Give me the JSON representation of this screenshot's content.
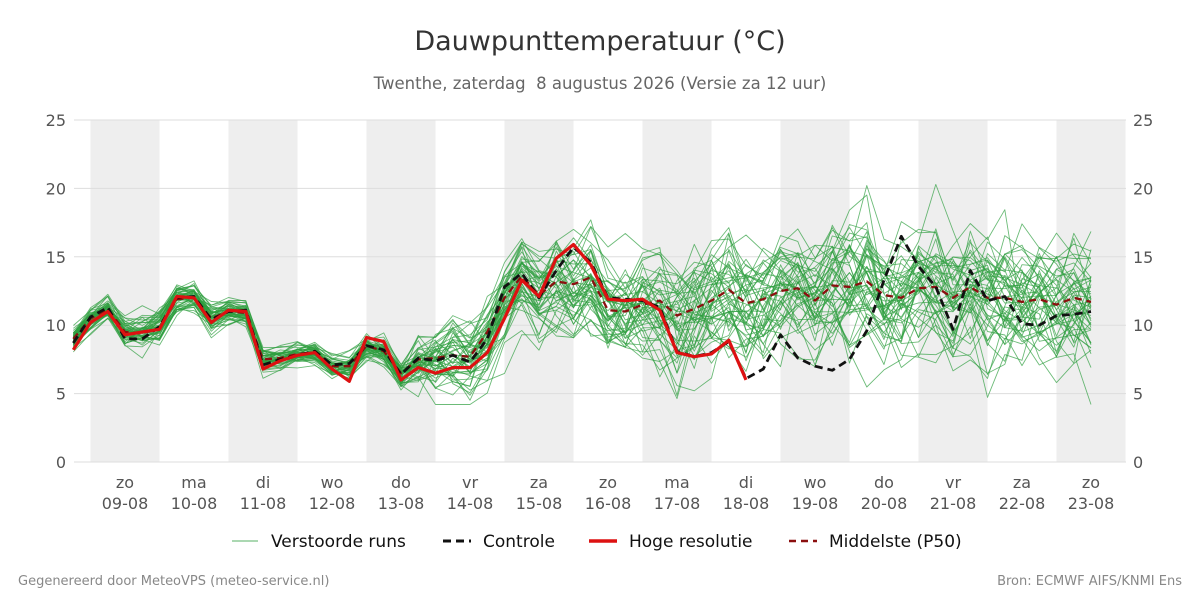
{
  "chart_data": {
    "type": "line",
    "title": "Dauwpunttemperatuur (°C)",
    "subtitle": "Twenthe, zaterdag  8 augustus 2026 (Versie za 12 uur)",
    "ylim": [
      0,
      25
    ],
    "yticks": [
      0,
      5,
      10,
      15,
      20,
      25
    ],
    "grid": true,
    "legend_position": "bottom",
    "day_labels": [
      {
        "day": "zo",
        "date": "09-08"
      },
      {
        "day": "ma",
        "date": "10-08"
      },
      {
        "day": "di",
        "date": "11-08"
      },
      {
        "day": "wo",
        "date": "12-08"
      },
      {
        "day": "do",
        "date": "13-08"
      },
      {
        "day": "vr",
        "date": "14-08"
      },
      {
        "day": "za",
        "date": "15-08"
      },
      {
        "day": "zo",
        "date": "16-08"
      },
      {
        "day": "ma",
        "date": "17-08"
      },
      {
        "day": "di",
        "date": "18-08"
      },
      {
        "day": "wo",
        "date": "19-08"
      },
      {
        "day": "do",
        "date": "20-08"
      },
      {
        "day": "vr",
        "date": "21-08"
      },
      {
        "day": "za",
        "date": "22-08"
      },
      {
        "day": "zo",
        "date": "23-08"
      }
    ],
    "x_start": "08-08 18:00",
    "x_step_hours": 6,
    "series": [
      {
        "name": "Hoge resolutie",
        "color": "#dd1111",
        "values": [
          8.2,
          10.2,
          11.0,
          9.3,
          9.5,
          9.7,
          12.1,
          12.0,
          10.2,
          11.1,
          11.0,
          6.8,
          7.4,
          7.8,
          8.0,
          6.8,
          5.9,
          9.1,
          8.8,
          6.0,
          6.9,
          6.5,
          6.9,
          6.9,
          8.0,
          10.5,
          13.3,
          12.1,
          14.9,
          15.9,
          14.4,
          11.9,
          11.8,
          11.9,
          11.1,
          8.0,
          7.7,
          7.9,
          8.9,
          6.0
        ]
      },
      {
        "name": "Controle",
        "color": "#111111",
        "values": [
          8.7,
          10.6,
          11.3,
          9.0,
          9.0,
          9.9,
          12.0,
          12.1,
          10.4,
          11.0,
          11.1,
          7.1,
          7.5,
          7.8,
          8.1,
          7.1,
          7.2,
          8.5,
          8.2,
          6.4,
          7.6,
          7.4,
          7.8,
          7.3,
          9.0,
          12.8,
          13.8,
          12.0,
          14.0,
          15.7,
          14.6,
          12.0,
          11.9,
          11.8,
          11.3,
          8.1,
          7.7,
          8.0,
          8.8,
          6.1,
          6.8,
          9.3,
          7.6,
          7.0,
          6.7,
          7.5,
          9.6,
          13.3,
          16.5,
          14.3,
          12.8,
          9.7,
          14.0,
          11.8,
          12.1,
          10.1,
          10.0,
          10.7,
          10.8,
          11.0
        ]
      },
      {
        "name": "Middelste (P50)",
        "color": "#8b0f0f",
        "values": [
          9.0,
          10.5,
          11.2,
          9.5,
          9.4,
          9.8,
          11.9,
          12.0,
          10.5,
          11.0,
          10.9,
          7.5,
          7.6,
          7.9,
          8.0,
          7.0,
          7.0,
          8.5,
          8.1,
          6.5,
          7.5,
          7.6,
          7.8,
          7.7,
          9.5,
          12.0,
          13.6,
          12.2,
          13.2,
          13.0,
          13.5,
          11.1,
          11.0,
          11.5,
          11.8,
          10.7,
          11.2,
          11.8,
          12.6,
          11.6,
          11.9,
          12.5,
          12.7,
          11.8,
          12.9,
          12.8,
          13.2,
          12.2,
          12.0,
          12.7,
          12.8,
          12.0,
          12.8,
          12.0,
          12.0,
          11.7,
          11.9,
          11.5,
          12.0,
          11.7
        ]
      },
      {
        "name": "Verstoorde runs",
        "color": "#2e9e3e",
        "ensemble": true,
        "member_count": 50,
        "member_spread": [
          0.6,
          0.9,
          0.9,
          1.2,
          1.4,
          1.3,
          1.0,
          0.9,
          1.2,
          0.9,
          0.8,
          1.0,
          0.8,
          0.7,
          0.8,
          0.9,
          1.0,
          1.0,
          1.1,
          1.2,
          2.0,
          2.6,
          2.8,
          2.6,
          2.8,
          2.8,
          2.7,
          2.9,
          3.3,
          3.5,
          3.4,
          3.3,
          3.4,
          3.4,
          3.5,
          3.7,
          3.8,
          3.8,
          3.9,
          3.9,
          3.9,
          4.0,
          4.0,
          4.0,
          4.1,
          4.1,
          4.1,
          4.2,
          4.2,
          4.2,
          4.2,
          4.3,
          4.3,
          4.3,
          4.3,
          4.4,
          4.4,
          4.4,
          4.4,
          4.4
        ]
      }
    ]
  },
  "legend": {
    "ensemble_label": "Verstoorde runs",
    "control_label": "Controle",
    "hires_label": "Hoge resolutie",
    "median_label": "Middelste (P50)"
  },
  "footer": {
    "left": "Gegenereerd door MeteoVPS (meteo-service.nl)",
    "right": "Bron: ECMWF AIFS/KNMI Ens"
  },
  "colors": {
    "weekend_band": "#eeeeee",
    "grid": "#dddddd",
    "ensemble": "#2e9e3e",
    "hires": "#dd1111",
    "control": "#111111",
    "median": "#8b0f0f"
  }
}
